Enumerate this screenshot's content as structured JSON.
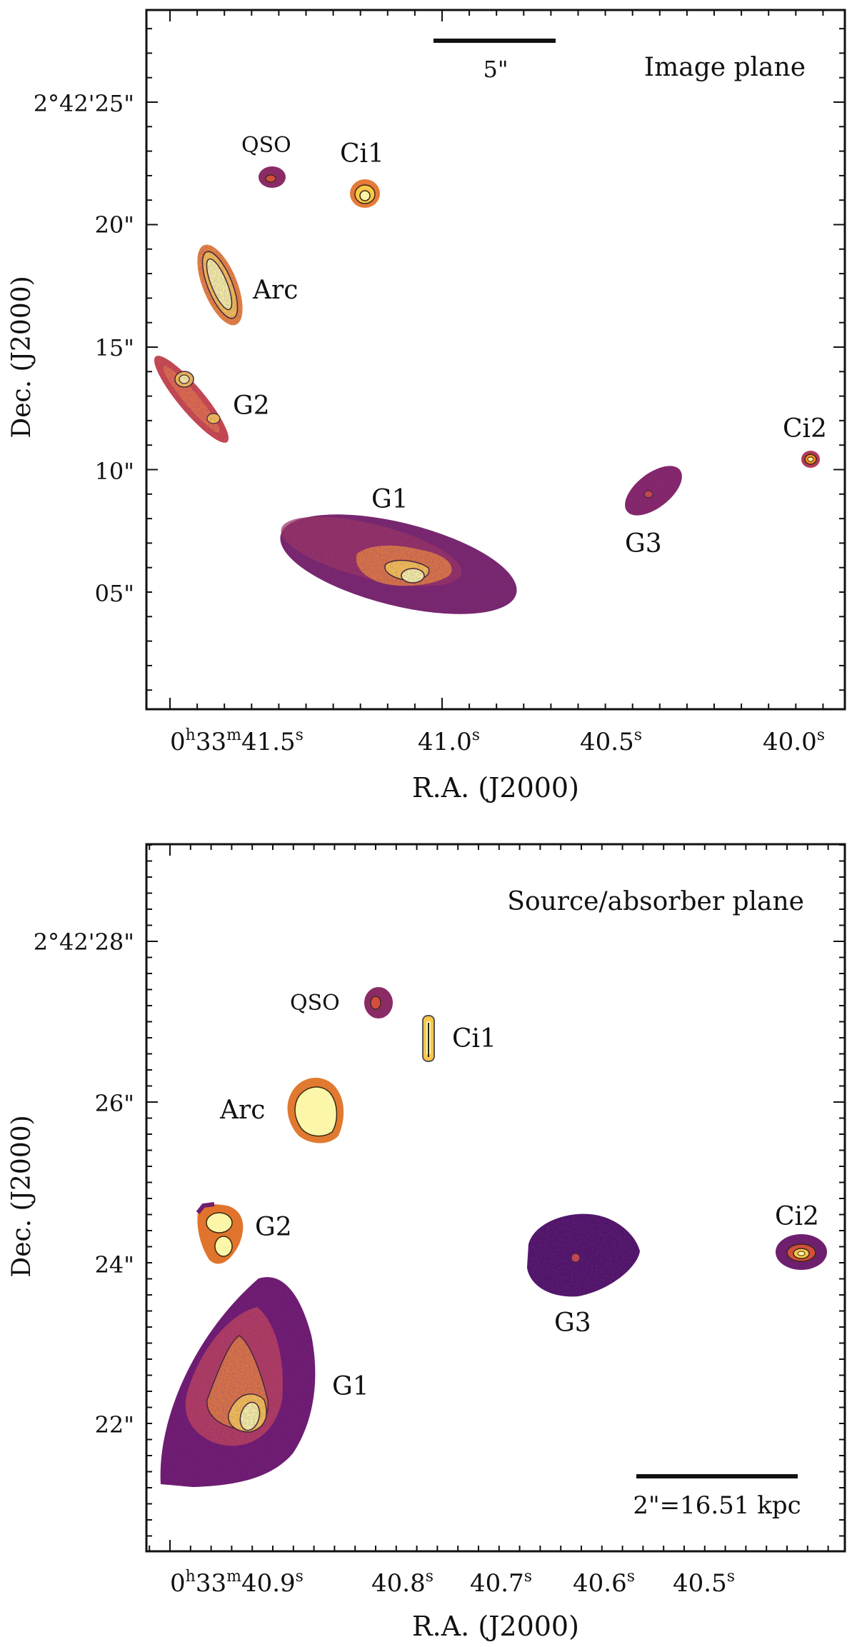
{
  "panels": [
    {
      "id": "image",
      "title": "Image plane",
      "scalebar_label": "5\"",
      "x_label": "R.A. (J2000)",
      "y_label": "Dec. (J2000)",
      "y_ticks": [
        "2°42'25\"",
        "20\"",
        "15\"",
        "10\"",
        "05\""
      ],
      "x_ticks": [
        {
          "prefix": "0",
          "h": "h",
          "mid": "33",
          "m": "m",
          "main": "41.5",
          "s": "s"
        },
        {
          "main": "41.0",
          "s": "s"
        },
        {
          "main": "40.5",
          "s": "s"
        },
        {
          "main": "40.0",
          "s": "s"
        }
      ],
      "objects": [
        {
          "name": "qso",
          "label": "QSO"
        },
        {
          "name": "ci1",
          "label": "Ci1"
        },
        {
          "name": "arc",
          "label": "Arc"
        },
        {
          "name": "g2",
          "label": "G2"
        },
        {
          "name": "ci2",
          "label": "Ci2"
        },
        {
          "name": "g1",
          "label": "G1"
        },
        {
          "name": "g3",
          "label": "G3"
        }
      ]
    },
    {
      "id": "source",
      "title": "Source/absorber plane",
      "scalebar_label": "2\"=16.51 kpc",
      "x_label": "R.A. (J2000)",
      "y_label": "Dec. (J2000)",
      "y_ticks": [
        "2°42'28\"",
        "26\"",
        "24\"",
        "22\""
      ],
      "x_ticks": [
        {
          "prefix": "0",
          "h": "h",
          "mid": "33",
          "m": "m",
          "main": "40.9",
          "s": "s"
        },
        {
          "main": "40.8",
          "s": "s"
        },
        {
          "main": "40.7",
          "s": "s"
        },
        {
          "main": "40.6",
          "s": "s"
        },
        {
          "main": "40.5",
          "s": "s"
        }
      ],
      "objects": [
        {
          "name": "qso",
          "label": "QSO"
        },
        {
          "name": "ci1",
          "label": "Ci1"
        },
        {
          "name": "arc",
          "label": "Arc"
        },
        {
          "name": "g2",
          "label": "G2"
        },
        {
          "name": "ci2",
          "label": "Ci2"
        },
        {
          "name": "g3",
          "label": "G3"
        },
        {
          "name": "g1",
          "label": "G1"
        }
      ]
    }
  ],
  "colors": {
    "dark": "#3d0b55",
    "purple": "#6e1f6e",
    "magenta": "#a8325f",
    "red": "#d24f3f",
    "orange": "#f08a25",
    "yellow": "#fbc64a",
    "pale": "#fcf6a8",
    "contour": "#3a2a10"
  }
}
